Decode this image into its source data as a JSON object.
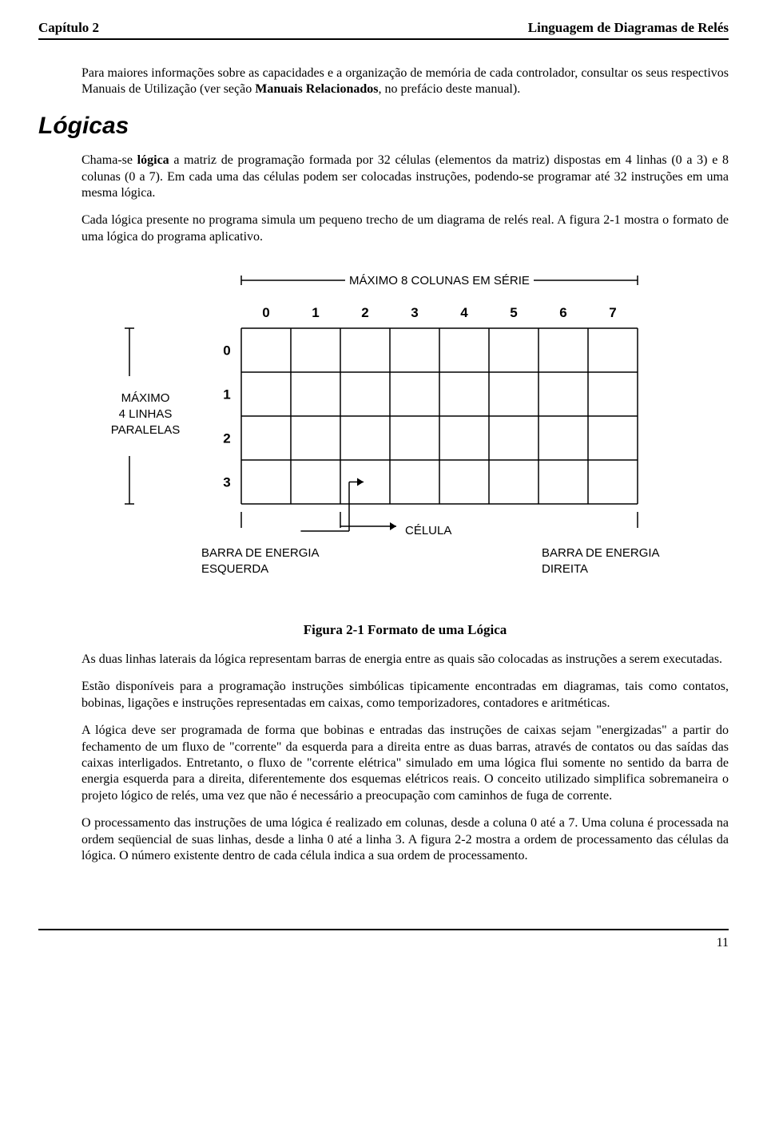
{
  "header": {
    "left": "Capítulo 2",
    "right": "Linguagem de Diagramas de Relés"
  },
  "intro_para_pre": "Para maiores informações sobre as capacidades e a organização de memória de cada controlador, consultar os seus respectivos Manuais de Utilização (ver seção ",
  "intro_para_bold": "Manuais Relacionados",
  "intro_para_post": ", no prefácio deste manual).",
  "section_title": "Lógicas",
  "p1_pre": "Chama-se ",
  "p1_bold": "lógica",
  "p1_post": " a matriz de programação formada por 32 células (elementos da matriz) dispostas em 4 linhas (0 a 3) e 8 colunas (0 a 7). Em cada uma das células podem ser colocadas instruções, podendo-se programar até 32 instruções em uma mesma lógica.",
  "p2": "Cada lógica presente no programa simula um pequeno trecho de um diagrama de relés real. A figura 2-1 mostra o formato de uma lógica do programa aplicativo.",
  "figure": {
    "top_label": "MÁXIMO 8 COLUNAS EM SÉRIE",
    "col_labels": [
      "0",
      "1",
      "2",
      "3",
      "4",
      "5",
      "6",
      "7"
    ],
    "row_labels": [
      "0",
      "1",
      "2",
      "3"
    ],
    "left_label_line1": "MÁXIMO",
    "left_label_line2": "4 LINHAS",
    "left_label_line3": "PARALELAS",
    "celula_label": "CÉLULA",
    "left_bar_l1": "BARRA DE ENERGIA",
    "left_bar_l2": "ESQUERDA",
    "right_bar_l1": "BARRA DE ENERGIA",
    "right_bar_l2": "DIREITA",
    "caption": "Figura 2-1 Formato de uma Lógica",
    "grid_cols": 8,
    "grid_rows": 4,
    "stroke": "#000000",
    "fill_bg": "#ffffff",
    "font_size_label": 15,
    "font_size_num": 17
  },
  "p3": "As duas linhas laterais da lógica representam barras de energia entre as quais são colocadas as instruções a serem executadas.",
  "p4": "Estão disponíveis para a programação instruções simbólicas tipicamente encontradas em diagramas, tais como contatos, bobinas, ligações e instruções representadas em caixas, como temporizadores, contadores e aritméticas.",
  "p5": "A lógica deve ser programada de forma que bobinas e entradas das instruções de caixas sejam \"energizadas\" a partir do fechamento de um fluxo de \"corrente\" da esquerda para a direita entre as duas barras, através de contatos ou das saídas das caixas interligados. Entretanto, o fluxo de \"corrente elétrica\" simulado em uma lógica flui somente no sentido da barra de energia esquerda para a direita, diferentemente dos esquemas elétricos reais. O conceito utilizado simplifica sobremaneira o projeto lógico de relés, uma vez que não é necessário a preocupação com caminhos de fuga de corrente.",
  "p6": "O processamento das instruções de uma lógica é realizado em colunas, desde a coluna 0 até a 7. Uma coluna é processada na ordem seqüencial de suas linhas, desde a linha 0 até a linha 3. A figura 2-2 mostra a ordem de processamento das células da lógica. O número existente dentro de cada célula indica a sua ordem de processamento.",
  "page_number": "11"
}
